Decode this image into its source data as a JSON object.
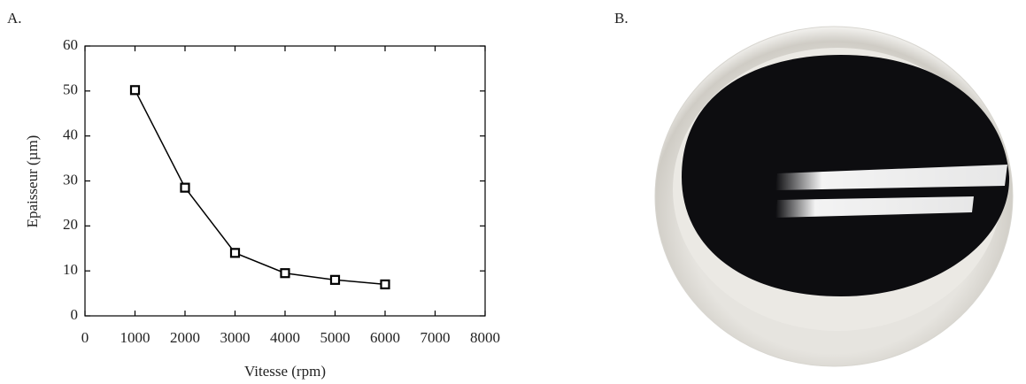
{
  "chart_data": {
    "type": "line",
    "panel_label": "A.",
    "x_label": "Vitesse (rpm)",
    "y_label": "Epaisseur (µm)",
    "x": [
      1000,
      2000,
      3000,
      4000,
      5000,
      6000
    ],
    "values": [
      50.2,
      28.5,
      14,
      9.5,
      8,
      7
    ],
    "color": "#000000",
    "marker": "square",
    "xlim": [
      0,
      8000
    ],
    "xticks": [
      0,
      1000,
      2000,
      3000,
      4000,
      5000,
      6000,
      7000,
      8000
    ],
    "ylim": [
      0,
      60
    ],
    "yticks": [
      0,
      10,
      20,
      30,
      40,
      50,
      60
    ],
    "grid": false
  },
  "photo": {
    "panel_label": "B."
  }
}
